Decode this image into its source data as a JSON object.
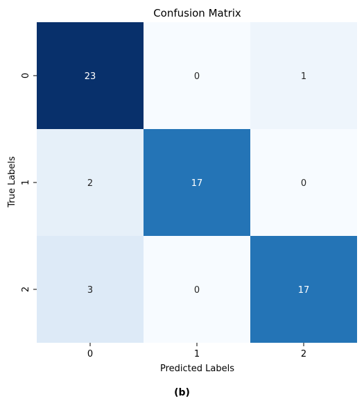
{
  "chart_data": {
    "type": "heatmap",
    "title": "Confusion Matrix",
    "xlabel": "Predicted Labels",
    "ylabel": "True Labels",
    "x_categories": [
      "0",
      "1",
      "2"
    ],
    "y_categories": [
      "0",
      "1",
      "2"
    ],
    "values": [
      [
        23,
        0,
        1
      ],
      [
        2,
        17,
        0
      ],
      [
        3,
        0,
        17
      ]
    ],
    "colormap": "Blues",
    "colorbar": false,
    "annotations": true
  },
  "caption": "(b)",
  "colors": {
    "min": "#f7fbff",
    "max": "#08306b",
    "light_text": "#ffffff",
    "dark_text": "#262626"
  }
}
